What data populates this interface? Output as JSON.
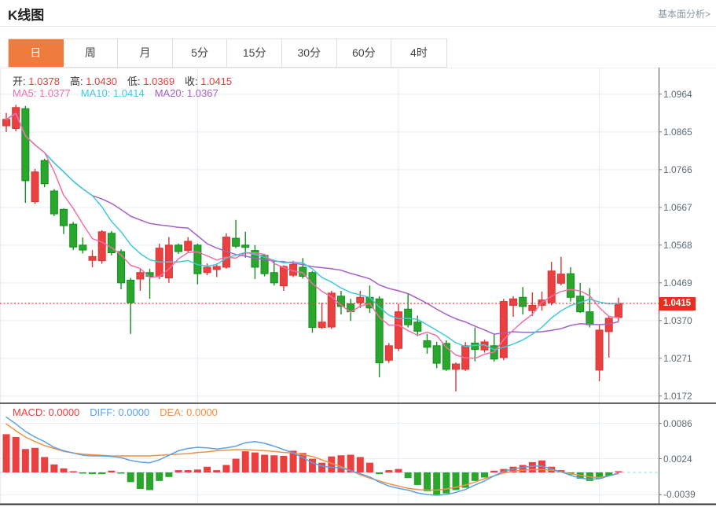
{
  "header": {
    "title": "K线图",
    "link": "基本面分析>"
  },
  "tabs": {
    "items": [
      "日",
      "周",
      "月",
      "5分",
      "15分",
      "30分",
      "60分",
      "4时"
    ],
    "active": 0
  },
  "legend": {
    "ohlc": [
      {
        "label": "开:",
        "value": "1.0378"
      },
      {
        "label": "高:",
        "value": "1.0430"
      },
      {
        "label": "低:",
        "value": "1.0369"
      },
      {
        "label": "收:",
        "value": "1.0415"
      }
    ],
    "ma": [
      {
        "label": "MA5:",
        "value": "1.0377",
        "color": "#f36fa9"
      },
      {
        "label": "MA10:",
        "value": "1.0414",
        "color": "#40c8de"
      },
      {
        "label": "MA20:",
        "value": "1.0367",
        "color": "#a55fc9"
      }
    ],
    "macd": [
      {
        "label": "MACD:",
        "value": "0.0000",
        "color": "#ea3f3f"
      },
      {
        "label": "DIFF:",
        "value": "0.0000",
        "color": "#5aa2e8"
      },
      {
        "label": "DEA:",
        "value": "0.0000",
        "color": "#f29143"
      }
    ]
  },
  "price_axis": {
    "ticks": [
      "1.0964",
      "1.0865",
      "1.0766",
      "1.0667",
      "1.0568",
      "1.0469",
      "1.0370",
      "1.0271",
      "1.0172"
    ],
    "last_price": "1.0415"
  },
  "macd_axis": {
    "ticks": [
      "0.0086",
      "0.0024",
      "-0.0039"
    ]
  },
  "colors": {
    "accent": "#ef7c3d",
    "up": "#ea4040",
    "up_stroke": "#d93537",
    "down": "#2ba62c",
    "down_stroke": "#128f1e",
    "ma5": "#f36fa9",
    "ma10": "#40c8de",
    "ma20": "#a55fc9",
    "diff": "#5aa2e8",
    "dea": "#f29143",
    "badge": "#e82e1e",
    "price_line": "#f23c3c",
    "zero_line": "#96d8e4",
    "grid": "#e4edf5",
    "axis_line": "#555",
    "separator": "#333"
  },
  "chart_data": {
    "type": "candlestick",
    "title": "K线图",
    "xlabel": "",
    "ylabel": "",
    "price_ylim": [
      1.0153,
      1.1034
    ],
    "macd_ylim": [
      -0.0055,
      0.0121
    ],
    "grid": true,
    "legend_position": "top-left",
    "grid_vertical_indices": [
      20,
      41,
      62
    ],
    "candles": [
      [
        1.0881,
        1.0915,
        1.0865,
        1.0898
      ],
      [
        1.0874,
        1.0936,
        1.0867,
        1.0929
      ],
      [
        1.0926,
        1.0933,
        1.0679,
        1.0737
      ],
      [
        1.0682,
        1.0768,
        1.0676,
        1.076
      ],
      [
        1.079,
        1.0795,
        1.072,
        1.0729
      ],
      [
        1.071,
        1.0715,
        1.0644,
        1.065
      ],
      [
        1.0662,
        1.0664,
        1.0597,
        1.0619
      ],
      [
        1.0623,
        1.0629,
        1.0555,
        1.0563
      ],
      [
        1.0568,
        1.0588,
        1.0546,
        1.0555
      ],
      [
        1.0528,
        1.0555,
        1.051,
        1.0538
      ],
      [
        1.0527,
        1.0607,
        1.0519,
        1.0603
      ],
      [
        1.0599,
        1.0605,
        1.0541,
        1.0548
      ],
      [
        1.0551,
        1.0557,
        1.0452,
        1.0469
      ],
      [
        1.0476,
        1.0482,
        1.0335,
        1.0417
      ],
      [
        1.0479,
        1.0506,
        1.0448,
        1.0496
      ],
      [
        1.0496,
        1.0506,
        1.0427,
        1.0486
      ],
      [
        1.0486,
        1.0572,
        1.0479,
        1.056
      ],
      [
        1.0482,
        1.0589,
        1.0469,
        1.0568
      ],
      [
        1.0568,
        1.0572,
        1.0545,
        1.0551
      ],
      [
        1.0554,
        1.0589,
        1.0548,
        1.0578
      ],
      [
        1.0568,
        1.0572,
        1.0465,
        1.0493
      ],
      [
        1.0496,
        1.052,
        1.0489,
        1.051
      ],
      [
        1.0504,
        1.052,
        1.0484,
        1.0512
      ],
      [
        1.051,
        1.0599,
        1.0506,
        1.0589
      ],
      [
        1.0586,
        1.0634,
        1.056,
        1.0565
      ],
      [
        1.0568,
        1.0603,
        1.0535,
        1.0562
      ],
      [
        1.0554,
        1.0568,
        1.0479,
        1.051
      ],
      [
        1.0541,
        1.0545,
        1.0486,
        1.0493
      ],
      [
        1.0496,
        1.0527,
        1.0462,
        1.0469
      ],
      [
        1.0461,
        1.0515,
        1.0448,
        1.0512
      ],
      [
        1.0489,
        1.0527,
        1.0484,
        1.0517
      ],
      [
        1.051,
        1.0534,
        1.048,
        1.0486
      ],
      [
        1.0496,
        1.05,
        1.0338,
        1.0352
      ],
      [
        1.0352,
        1.0417,
        1.0348,
        1.0366
      ],
      [
        1.0353,
        1.0448,
        1.0348,
        1.0442
      ],
      [
        1.0434,
        1.0448,
        1.0386,
        1.0407
      ],
      [
        1.0414,
        1.0427,
        1.0369,
        1.0393
      ],
      [
        1.0417,
        1.0448,
        1.0403,
        1.0431
      ],
      [
        1.0431,
        1.0462,
        1.039,
        1.0403
      ],
      [
        1.0427,
        1.0434,
        1.0221,
        1.0259
      ],
      [
        1.0266,
        1.0311,
        1.0259,
        1.0304
      ],
      [
        1.0297,
        1.0414,
        1.029,
        1.0393
      ],
      [
        1.04,
        1.0441,
        1.0352,
        1.0359
      ],
      [
        1.0366,
        1.0383,
        1.0329,
        1.0342
      ],
      [
        1.0317,
        1.0335,
        1.0283,
        1.03
      ],
      [
        1.0304,
        1.0314,
        1.0245,
        1.0258
      ],
      [
        1.031,
        1.0318,
        1.0238,
        1.0242
      ],
      [
        1.0242,
        1.026,
        1.0184,
        1.0256
      ],
      [
        1.0242,
        1.0314,
        1.0238,
        1.0304
      ],
      [
        1.0311,
        1.0352,
        1.0263,
        1.0294
      ],
      [
        1.0293,
        1.032,
        1.0286,
        1.0314
      ],
      [
        1.0304,
        1.0335,
        1.0262,
        1.0269
      ],
      [
        1.0273,
        1.0427,
        1.0266,
        1.042
      ],
      [
        1.041,
        1.0434,
        1.038,
        1.0427
      ],
      [
        1.0431,
        1.0458,
        1.0386,
        1.0407
      ],
      [
        1.0396,
        1.0444,
        1.0382,
        1.041
      ],
      [
        1.041,
        1.0446,
        1.0396,
        1.0424
      ],
      [
        1.0417,
        1.0524,
        1.041,
        1.05
      ],
      [
        1.0468,
        1.0537,
        1.0462,
        1.0492
      ],
      [
        1.0493,
        1.051,
        1.042,
        1.0431
      ],
      [
        1.0434,
        1.0469,
        1.039,
        1.0393
      ],
      [
        1.0393,
        1.0455,
        1.0352,
        1.0359
      ],
      [
        1.024,
        1.0359,
        1.0211,
        1.0345
      ],
      [
        1.0341,
        1.0383,
        1.0273,
        1.0376
      ],
      [
        1.0378,
        1.043,
        1.0369,
        1.0415
      ]
    ],
    "ma_windows": [
      5,
      10,
      20
    ],
    "ma_current": {
      "ma5": 1.0377,
      "ma10": 1.0414,
      "ma20": 1.0367
    },
    "last_price": 1.0415,
    "macd": {
      "current": {
        "macd": 0.0,
        "diff": 0.0,
        "dea": 0.0
      },
      "hist": [
        0.0067,
        0.0062,
        0.0041,
        0.0043,
        0.0027,
        0.0014,
        0.0007,
        0.0002,
        -0.0002,
        -0.0003,
        -0.0003,
        0.0003,
        -0.0002,
        -0.0017,
        -0.0029,
        -0.0031,
        -0.0015,
        -0.0008,
        0.0004,
        0.0004,
        0.0005,
        0.001,
        0.0004,
        0.0013,
        0.0024,
        0.0037,
        0.0035,
        0.0031,
        0.003,
        0.0029,
        0.0038,
        0.0034,
        0.0024,
        0.0017,
        0.0028,
        0.003,
        0.0031,
        0.0027,
        0.0017,
        -0.0003,
        0.0004,
        0.0006,
        -0.001,
        -0.0022,
        -0.0033,
        -0.0039,
        -0.0037,
        -0.0031,
        -0.0027,
        -0.0015,
        -0.0009,
        0.0003,
        0.0006,
        0.001,
        0.0013,
        0.0018,
        0.0021,
        0.001,
        0.0004,
        -0.0004,
        -0.0011,
        -0.0015,
        -0.0011,
        -0.0006,
        0.0001
      ],
      "diff": [
        0.0097,
        0.0085,
        0.0072,
        0.0062,
        0.0054,
        0.0044,
        0.0038,
        0.0034,
        0.003,
        0.0029,
        0.0029,
        0.0028,
        0.0026,
        0.0021,
        0.0018,
        0.0017,
        0.0022,
        0.003,
        0.0038,
        0.0042,
        0.0044,
        0.0043,
        0.0041,
        0.0043,
        0.0046,
        0.0052,
        0.0054,
        0.0051,
        0.0046,
        0.004,
        0.0034,
        0.0026,
        0.0017,
        0.0011,
        0.0009,
        0.0008,
        0.0003,
        -0.0002,
        -0.0008,
        -0.0017,
        -0.0024,
        -0.0028,
        -0.0031,
        -0.0036,
        -0.0039,
        -0.004,
        -0.0039,
        -0.0035,
        -0.003,
        -0.0022,
        -0.0015,
        -0.0006,
        0.0002,
        0.0006,
        0.0009,
        0.0011,
        0.0011,
        0.0006,
        0.0001,
        -0.0005,
        -0.001,
        -0.0012,
        -0.0011,
        -0.0006,
        -0.0001
      ],
      "dea": [
        0.0085,
        0.0073,
        0.0062,
        0.0054,
        0.0047,
        0.0042,
        0.0037,
        0.0034,
        0.0032,
        0.0031,
        0.003,
        0.0029,
        0.0029,
        0.0029,
        0.0029,
        0.0029,
        0.003,
        0.0031,
        0.0032,
        0.0033,
        0.0035,
        0.0036,
        0.0038,
        0.0039,
        0.004,
        0.004,
        0.0039,
        0.0038,
        0.0037,
        0.0035,
        0.0034,
        0.0031,
        0.0028,
        0.0022,
        0.0016,
        0.001,
        0.0003,
        -0.0004,
        -0.001,
        -0.0015,
        -0.002,
        -0.0024,
        -0.0028,
        -0.003,
        -0.0031,
        -0.0031,
        -0.0029,
        -0.0026,
        -0.0022,
        -0.0017,
        -0.0011,
        -0.0006,
        -0.0001,
        0.0002,
        0.0004,
        0.0005,
        0.0005,
        0.0004,
        0.0001,
        -0.0002,
        -0.0005,
        -0.0008,
        -0.0009,
        -0.0006,
        -0.0002
      ]
    }
  }
}
